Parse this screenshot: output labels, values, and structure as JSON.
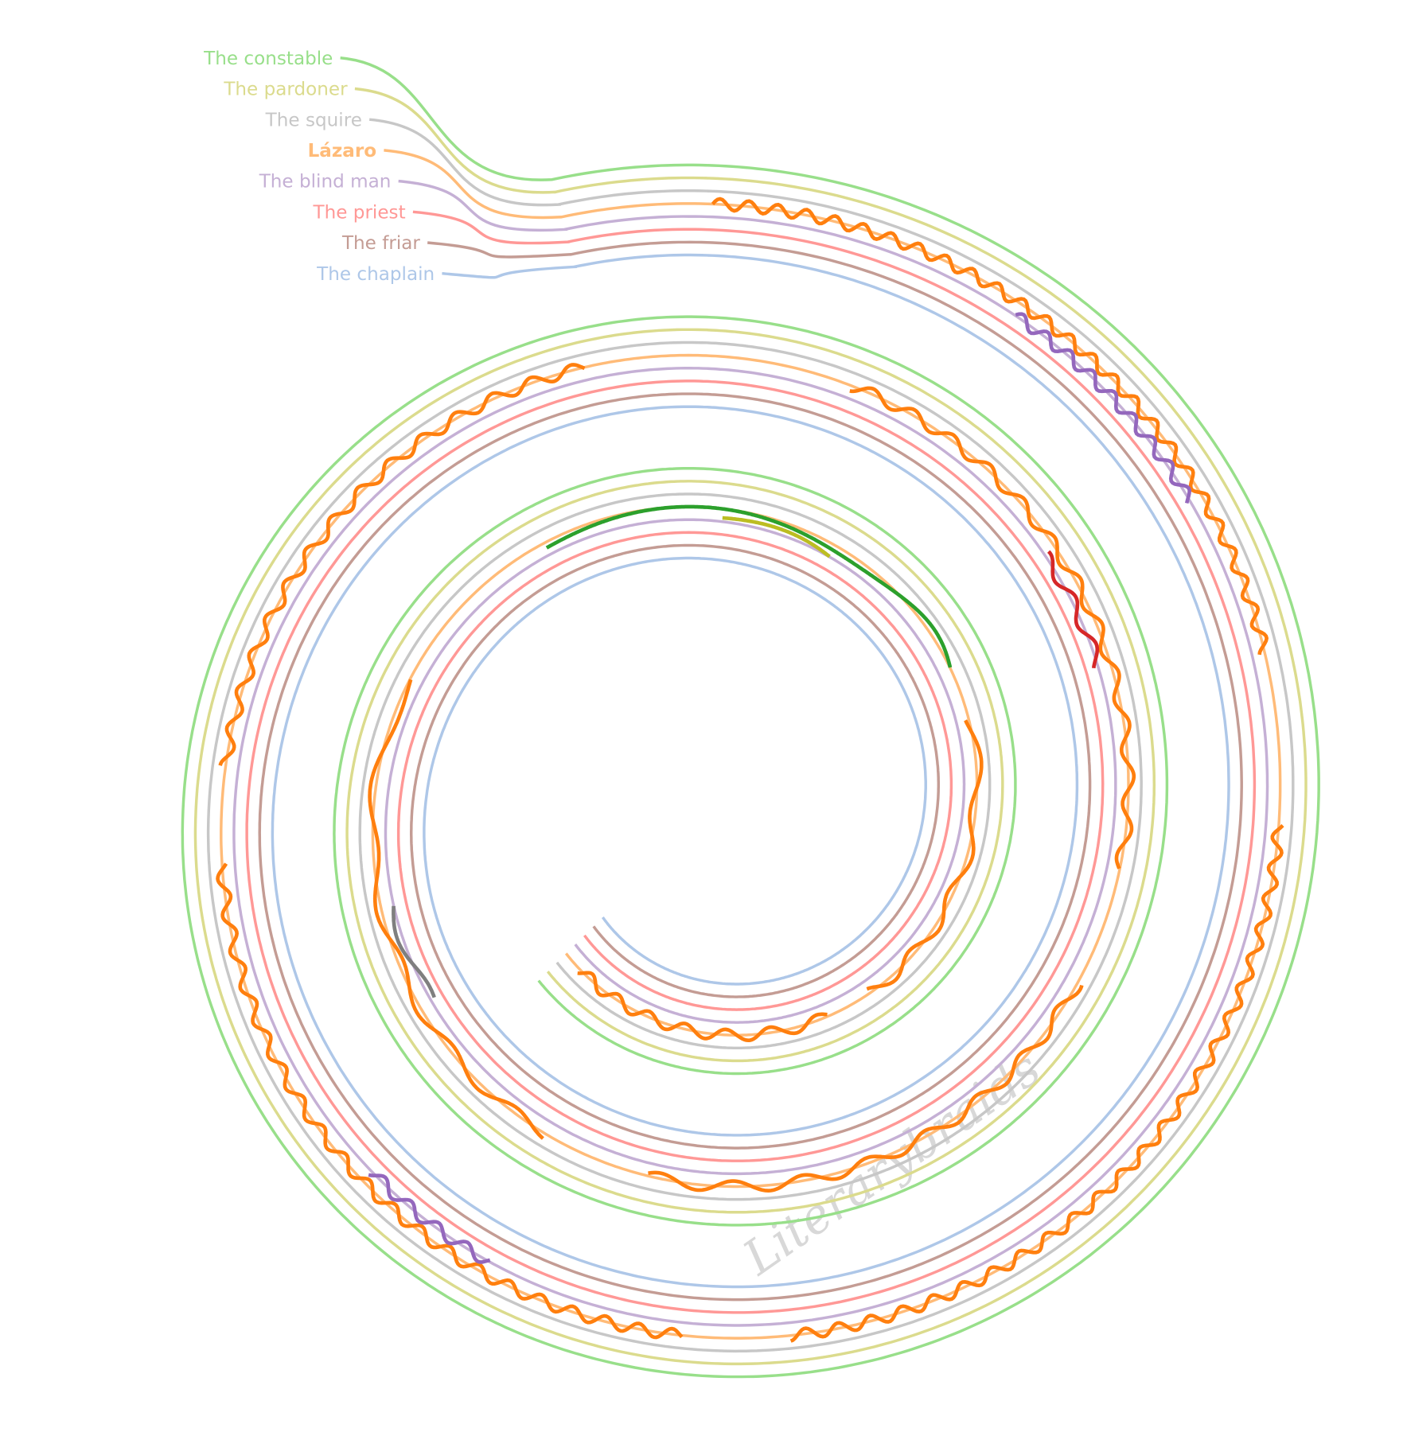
{
  "characters": [
    {
      "name": "The constable",
      "color": "#98df8a"
    },
    {
      "name": "The pardoner",
      "color": "#dbdb8d"
    },
    {
      "name": "The squire",
      "color": "#c7c7c7"
    },
    {
      "name": "Lázaro",
      "color": "#ffbb78",
      "bold": true
    },
    {
      "name": "The blind man",
      "color": "#c5b0d5"
    },
    {
      "name": "The priest",
      "color": "#ff9896"
    },
    {
      "name": "The friar",
      "color": "#c49c94"
    },
    {
      "name": "The chaplain",
      "color": "#aec7e8"
    }
  ],
  "watermark": "Literarybraids"
}
